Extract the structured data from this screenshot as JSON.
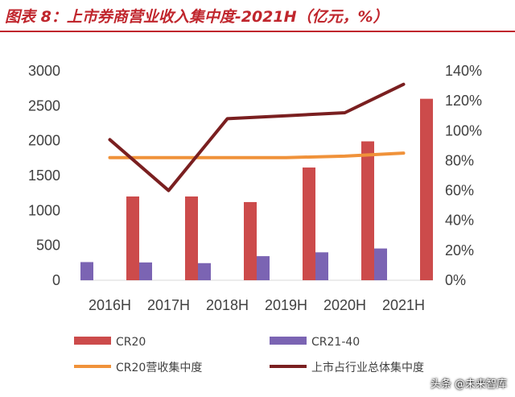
{
  "header": {
    "title": "图表 8：上市券商营业收入集中度-2021H（亿元，%）"
  },
  "watermark": "头条 @未来智库",
  "colors": {
    "title": "#c0262d",
    "cr20": "#cc4b4b",
    "cr21_40": "#7b64b3",
    "cr20_share": "#f0923a",
    "listed_share": "#7a1f20"
  },
  "chart_data": {
    "type": "bar",
    "categories": [
      "2016H",
      "2017H",
      "2018H",
      "2019H",
      "2020H",
      "2021H"
    ],
    "series": [
      {
        "name": "CR20",
        "kind": "bar",
        "axis": "left",
        "values": [
          1200,
          1200,
          1120,
          1615,
          1990,
          2600
        ]
      },
      {
        "name": "CR21-40",
        "kind": "bar",
        "axis": "left",
        "values": [
          260,
          255,
          245,
          345,
          400,
          455
        ]
      },
      {
        "name": "CR20营收集中度",
        "kind": "line",
        "axis": "right",
        "values": [
          82,
          82,
          82,
          82,
          83,
          85
        ]
      },
      {
        "name": "上市占行业总体集中度",
        "kind": "line",
        "axis": "right",
        "values": [
          94,
          60,
          108,
          110,
          112,
          131
        ]
      }
    ],
    "y_left": {
      "min": 0,
      "max": 3000,
      "ticks": [
        0,
        500,
        1000,
        1500,
        2000,
        2500,
        3000
      ]
    },
    "y_right": {
      "min": 0,
      "max": 140,
      "ticks": [
        "0%",
        "20%",
        "40%",
        "60%",
        "80%",
        "100%",
        "120%",
        "140%"
      ]
    },
    "grid": false,
    "legend_position": "bottom"
  }
}
